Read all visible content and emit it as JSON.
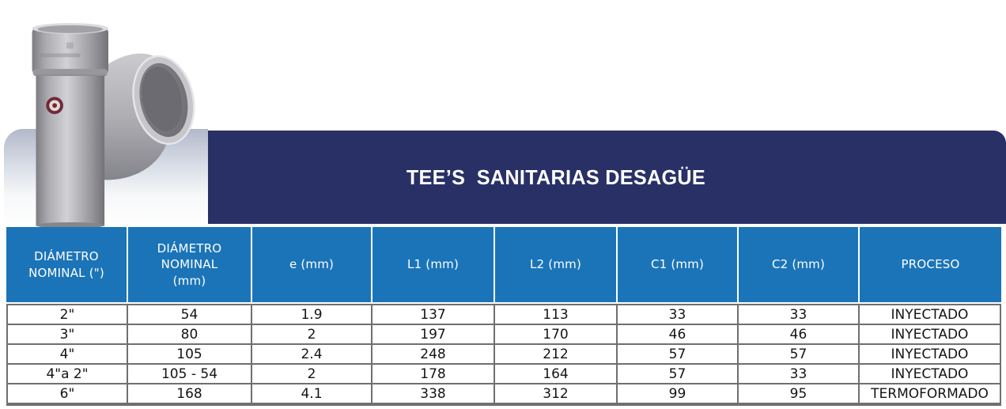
{
  "title_band": {
    "title": "TEE’S  SANITARIAS DESAGÜE"
  },
  "product": {
    "name": "tee-sanitaria-pvc-fitting-photo",
    "badge": "brand-badge"
  },
  "colors": {
    "band_navy": "#293066",
    "table_header_blue": "#1b74b8",
    "grid_gray": "#6f6f6f",
    "cell_text": "#141417",
    "header_text": "#ffffff",
    "badge_maroon": "#6e2b3a",
    "pipe_gray": "#adadb2"
  },
  "table": {
    "columns": [
      "DIÁMETRO\nNOMINAL (\")",
      "DIÁMETRO\nNOMINAL\n(mm)",
      "e (mm)",
      "L1 (mm)",
      "L2 (mm)",
      "C1 (mm)",
      "C2 (mm)",
      "PROCESO"
    ],
    "rows": [
      [
        "2\"",
        "54",
        "1.9",
        "137",
        "113",
        "33",
        "33",
        "INYECTADO"
      ],
      [
        "3\"",
        "80",
        "2",
        "197",
        "170",
        "46",
        "46",
        "INYECTADO"
      ],
      [
        "4\"",
        "105",
        "2.4",
        "248",
        "212",
        "57",
        "57",
        "INYECTADO"
      ],
      [
        "4\"a 2\"",
        "105 - 54",
        "2",
        "178",
        "164",
        "57",
        "33",
        "INYECTADO"
      ],
      [
        "6\"",
        "168",
        "4.1",
        "338",
        "312",
        "99",
        "95",
        "TERMOFORMADO"
      ]
    ]
  }
}
